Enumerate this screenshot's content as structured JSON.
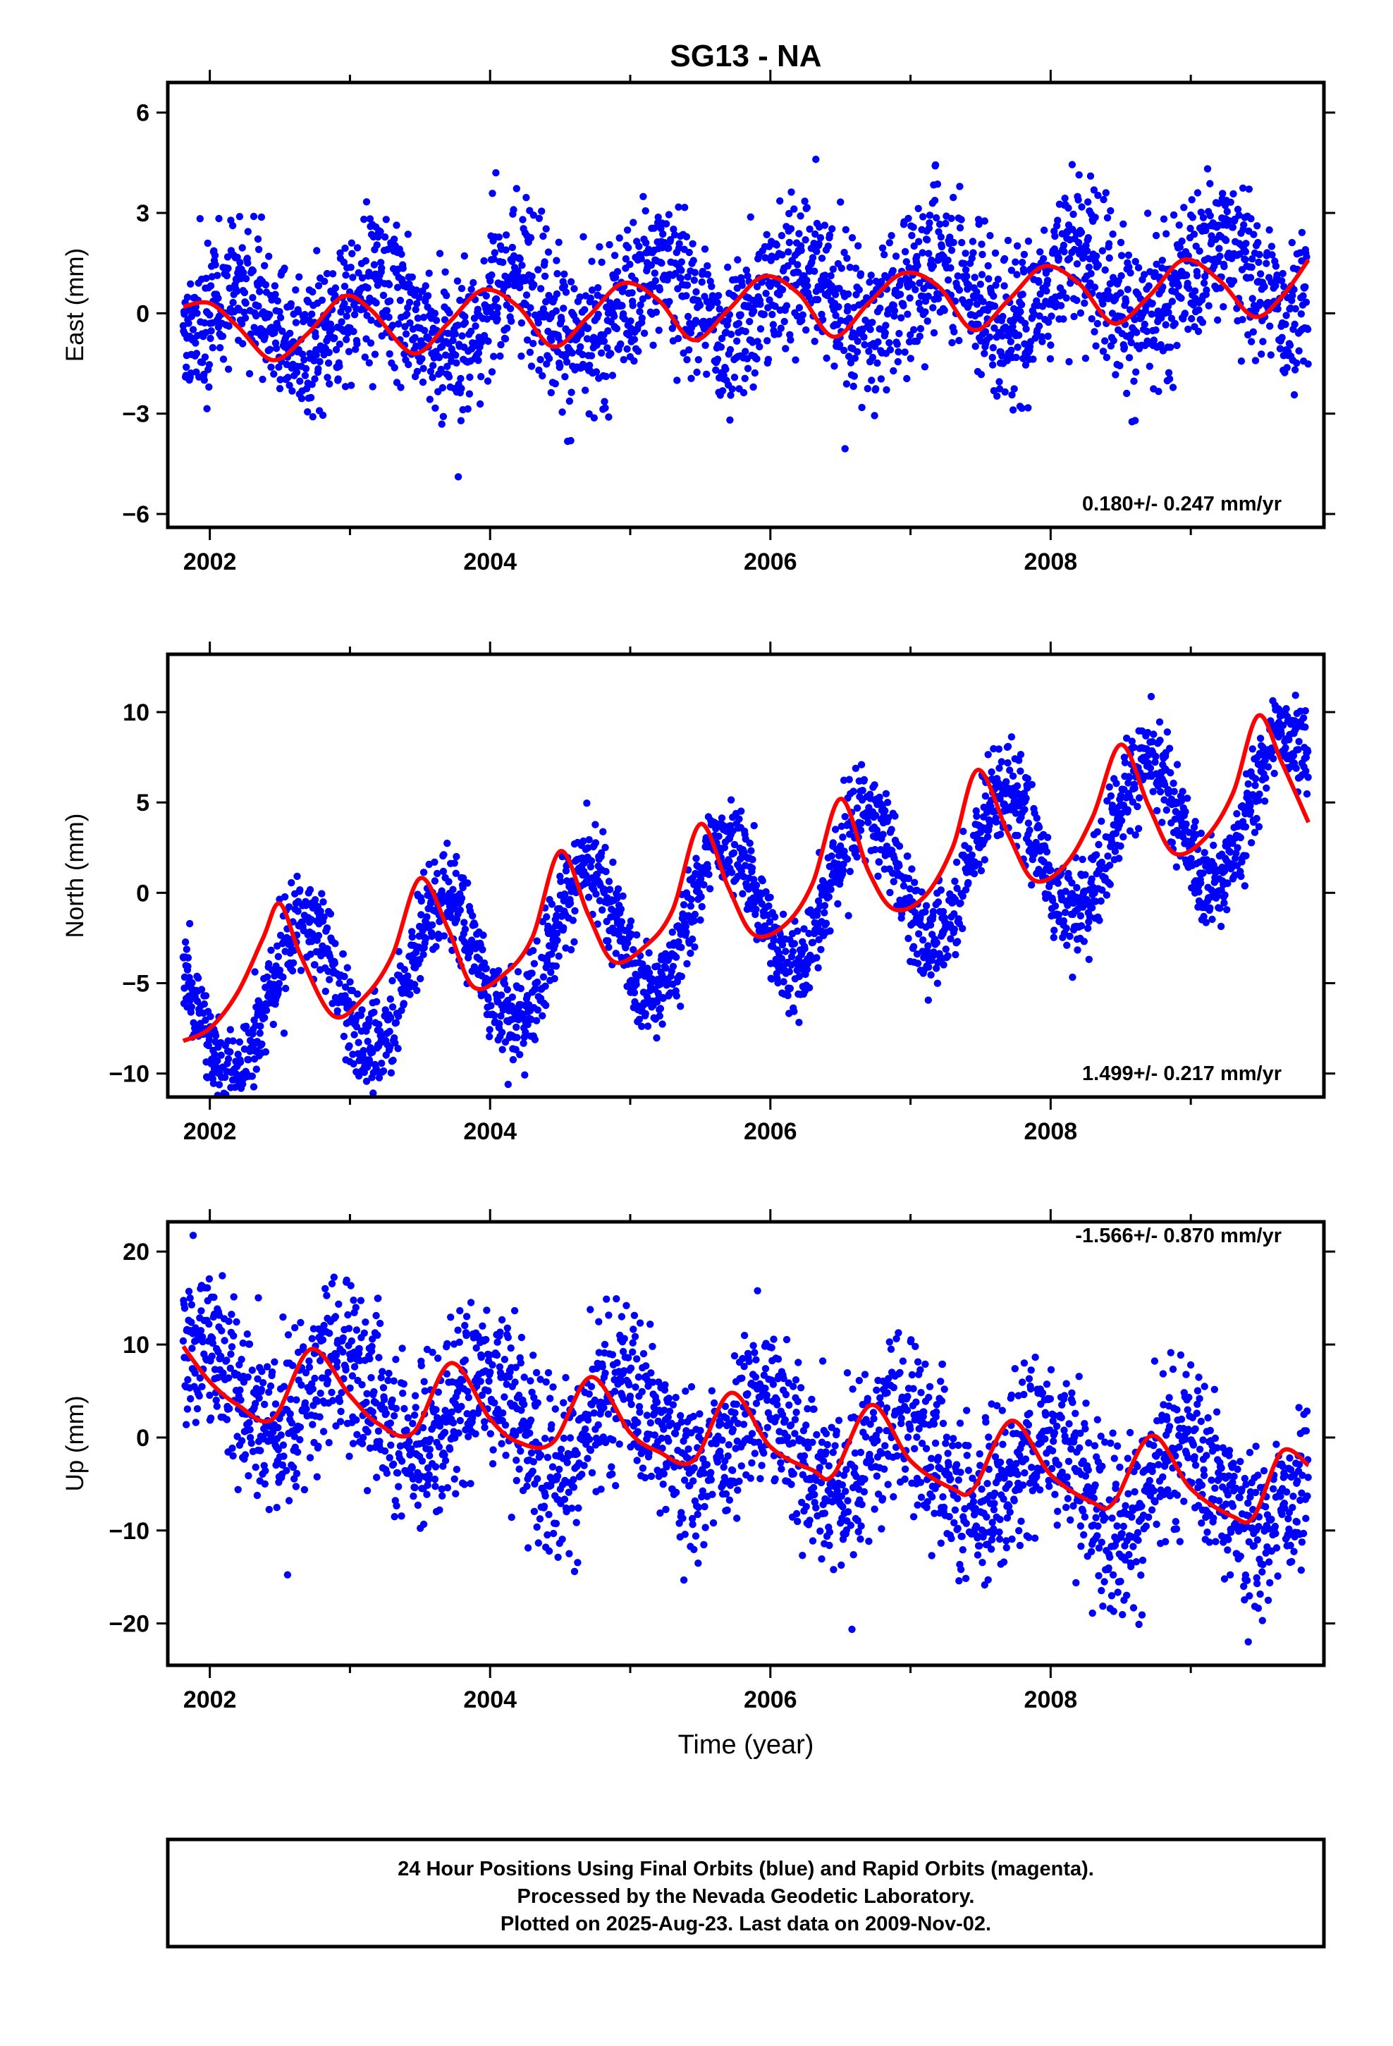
{
  "figure": {
    "title": "SG13 - NA",
    "x_axis_label": "Time (year)",
    "footer_lines": [
      "24 Hour Positions Using Final Orbits (blue) and Rapid Orbits (magenta).",
      "Processed by the Nevada Geodetic Laboratory.",
      "Plotted on 2025-Aug-23. Last data on 2009-Nov-02."
    ]
  },
  "chart_data": [
    {
      "type": "scatter",
      "ylabel": "East (mm)",
      "rate_label": "0.180+/- 0.247 mm/yr",
      "xlim": [
        2001.7,
        2009.95
      ],
      "ylim": [
        -6.4,
        6.9
      ],
      "xticks": [
        2002,
        2004,
        2006,
        2008
      ],
      "yticks": [
        -6,
        -3,
        0,
        3,
        6
      ],
      "tick_labels": [
        "−6",
        "−3",
        "0",
        "3",
        "6"
      ],
      "grid": false,
      "series": [
        {
          "kind": "points",
          "color": "#0000ff",
          "start": 2001.81,
          "end": 2009.84,
          "trend": {
            "offset": -0.35,
            "rate": 0.18,
            "annual": 1.1,
            "phase": 0.95
          },
          "noise": 1.15
        },
        {
          "kind": "fit",
          "color": "#ff0000",
          "x": [
            2001.81,
            2002.0,
            2002.2,
            2002.45,
            2002.7,
            2002.95,
            2003.15,
            2003.45,
            2003.7,
            2003.95,
            2004.2,
            2004.45,
            2004.7,
            2004.95,
            2005.2,
            2005.45,
            2005.7,
            2005.95,
            2006.2,
            2006.45,
            2006.7,
            2006.95,
            2007.2,
            2007.45,
            2007.7,
            2007.95,
            2008.2,
            2008.45,
            2008.7,
            2008.95,
            2009.2,
            2009.45,
            2009.65,
            2009.84
          ],
          "y": [
            0.2,
            0.3,
            -0.4,
            -1.4,
            -0.6,
            0.5,
            0.1,
            -1.2,
            -0.3,
            0.7,
            0.2,
            -1.0,
            -0.1,
            0.9,
            0.4,
            -0.8,
            0.1,
            1.1,
            0.6,
            -0.7,
            0.3,
            1.2,
            0.8,
            -0.5,
            0.4,
            1.4,
            0.9,
            -0.3,
            0.5,
            1.6,
            1.0,
            -0.1,
            0.5,
            1.6
          ]
        }
      ]
    },
    {
      "type": "scatter",
      "ylabel": "North (mm)",
      "rate_label": "1.499+/- 0.217 mm/yr",
      "xlim": [
        2001.7,
        2009.95
      ],
      "ylim": [
        -11.3,
        13.2
      ],
      "xticks": [
        2002,
        2004,
        2006,
        2008
      ],
      "yticks": [
        -10,
        -5,
        0,
        5,
        10
      ],
      "tick_labels": [
        "−10",
        "−5",
        "0",
        "5",
        "10"
      ],
      "grid": false,
      "series": [
        {
          "kind": "points",
          "color": "#0000ff",
          "start": 2001.81,
          "end": 2009.84,
          "trend": {
            "offset": -6.5,
            "rate": 1.5,
            "annual": 3.8,
            "phase": 0.42
          },
          "noise": 1.3
        },
        {
          "kind": "fit",
          "color": "#ff0000",
          "x": [
            2001.81,
            2002.0,
            2002.2,
            2002.38,
            2002.5,
            2002.65,
            2002.88,
            2003.1,
            2003.3,
            2003.5,
            2003.7,
            2003.88,
            2004.1,
            2004.3,
            2004.5,
            2004.7,
            2004.88,
            2005.1,
            2005.3,
            2005.5,
            2005.7,
            2005.88,
            2006.1,
            2006.3,
            2006.5,
            2006.7,
            2006.88,
            2007.1,
            2007.3,
            2007.48,
            2007.7,
            2007.88,
            2008.1,
            2008.3,
            2008.5,
            2008.7,
            2008.88,
            2009.1,
            2009.3,
            2009.48,
            2009.65,
            2009.84
          ],
          "y": [
            -8.2,
            -7.5,
            -5.5,
            -2.5,
            -0.6,
            -3.5,
            -6.8,
            -5.8,
            -3.5,
            0.8,
            -2.0,
            -5.2,
            -4.5,
            -2.5,
            2.3,
            -1.2,
            -3.8,
            -3.0,
            -1.0,
            3.8,
            0.3,
            -2.3,
            -1.8,
            0.5,
            5.2,
            1.2,
            -0.9,
            -0.2,
            2.5,
            6.8,
            3.2,
            0.7,
            1.5,
            4.2,
            8.2,
            4.8,
            2.2,
            3.0,
            5.5,
            9.8,
            7.2,
            3.9
          ]
        }
      ]
    },
    {
      "type": "scatter",
      "ylabel": "Up (mm)",
      "rate_label": "-1.566+/- 0.870 mm/yr",
      "xlim": [
        2001.7,
        2009.95
      ],
      "ylim": [
        -24.5,
        23.2
      ],
      "xticks": [
        2002,
        2004,
        2006,
        2008
      ],
      "yticks": [
        -20,
        -10,
        0,
        10,
        20
      ],
      "tick_labels": [
        "−20",
        "−10",
        "0",
        "10",
        "20"
      ],
      "grid": false,
      "series": [
        {
          "kind": "points",
          "color": "#0000ff",
          "start": 2001.81,
          "end": 2009.84,
          "trend": {
            "offset": 5.5,
            "rate": -1.566,
            "annual": 4.5,
            "phase": 0.72
          },
          "noise": 4.5
        },
        {
          "kind": "fit",
          "color": "#ff0000",
          "x": [
            2001.81,
            2002.0,
            2002.2,
            2002.45,
            2002.72,
            2003.0,
            2003.2,
            2003.45,
            2003.72,
            2004.0,
            2004.2,
            2004.45,
            2004.72,
            2005.0,
            2005.2,
            2005.45,
            2005.72,
            2006.0,
            2006.3,
            2006.45,
            2006.72,
            2007.0,
            2007.3,
            2007.45,
            2007.72,
            2008.0,
            2008.3,
            2008.45,
            2008.72,
            2009.0,
            2009.3,
            2009.45,
            2009.65,
            2009.84
          ],
          "y": [
            9.8,
            6.0,
            3.5,
            2.0,
            9.5,
            4.5,
            1.5,
            0.5,
            8.0,
            2.0,
            -0.5,
            -0.5,
            6.5,
            0.5,
            -1.5,
            -2.5,
            4.8,
            -1.0,
            -3.5,
            -4.0,
            3.5,
            -2.5,
            -5.5,
            -5.5,
            1.8,
            -4.0,
            -7.0,
            -7.0,
            0.2,
            -5.5,
            -8.5,
            -8.5,
            -1.5,
            -3.0
          ]
        }
      ]
    }
  ]
}
